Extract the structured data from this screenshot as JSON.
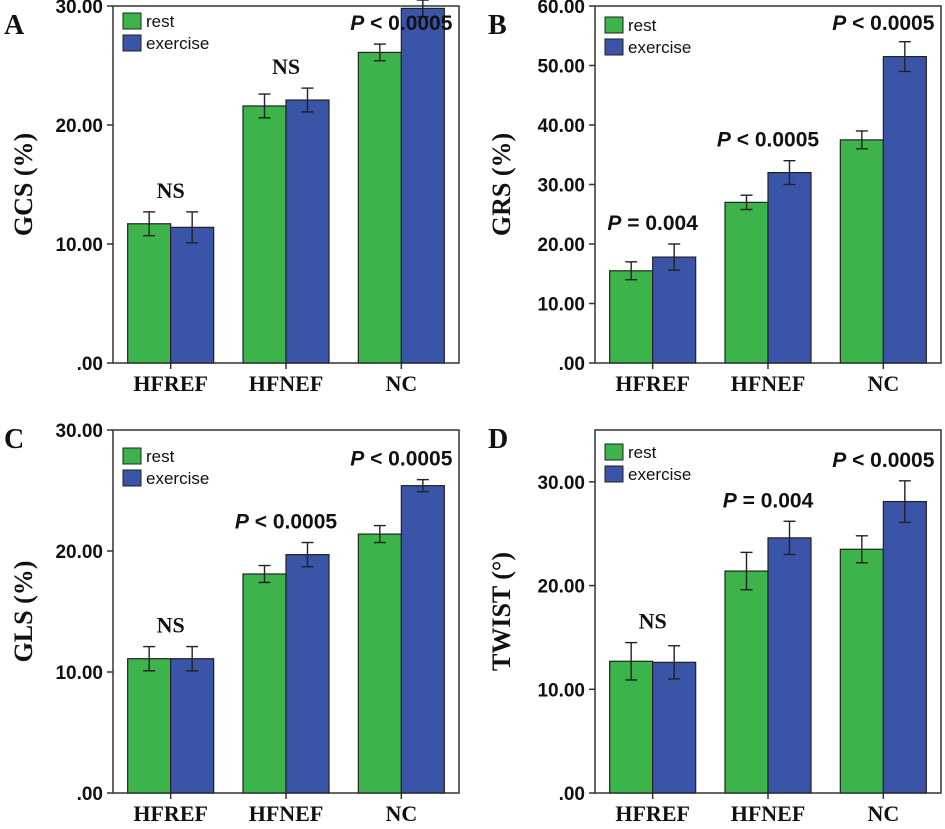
{
  "colors": {
    "rest": "#3cb44b",
    "exercise": "#3a54a8"
  },
  "chart_data": [
    {
      "type": "bar",
      "panel": "A",
      "ylabel": "GCS (%)",
      "categories": [
        "HFREF",
        "HFNEF",
        "NC"
      ],
      "ylim": [
        0,
        30
      ],
      "yticks": [
        ".00",
        "10.00",
        "20.00",
        "30.00"
      ],
      "ytick_values": [
        0,
        10,
        20,
        30
      ],
      "legend": [
        "rest",
        "exercise"
      ],
      "series": [
        {
          "name": "rest",
          "values": [
            11.7,
            21.6,
            26.1
          ],
          "error": [
            1.0,
            1.0,
            0.7
          ]
        },
        {
          "name": "exercise",
          "values": [
            11.4,
            22.1,
            29.8
          ],
          "error": [
            1.3,
            1.0,
            0.7
          ]
        }
      ],
      "annotations": [
        {
          "type": "ns",
          "text": "NS"
        },
        {
          "type": "ns",
          "text": "NS"
        },
        {
          "type": "p",
          "p": "P",
          "rest": "< 0.0005"
        }
      ]
    },
    {
      "type": "bar",
      "panel": "B",
      "ylabel": "GRS (%)",
      "categories": [
        "HFREF",
        "HFNEF",
        "NC"
      ],
      "ylim": [
        0,
        60
      ],
      "yticks": [
        ".00",
        "10.00",
        "20.00",
        "30.00",
        "40.00",
        "50.00",
        "60.00"
      ],
      "ytick_values": [
        0,
        10,
        20,
        30,
        40,
        50,
        60
      ],
      "legend": [
        "rest",
        "exercise"
      ],
      "series": [
        {
          "name": "rest",
          "values": [
            15.5,
            27.0,
            37.5
          ],
          "error": [
            1.5,
            1.2,
            1.5
          ]
        },
        {
          "name": "exercise",
          "values": [
            17.8,
            32.0,
            51.5
          ],
          "error": [
            2.2,
            2.0,
            2.5
          ]
        }
      ],
      "annotations": [
        {
          "type": "p",
          "p": "P",
          "rest": "= 0.004"
        },
        {
          "type": "p",
          "p": "P",
          "rest": "< 0.0005"
        },
        {
          "type": "p",
          "p": "P",
          "rest": "< 0.0005"
        }
      ]
    },
    {
      "type": "bar",
      "panel": "C",
      "ylabel": "GLS (%)",
      "categories": [
        "HFREF",
        "HFNEF",
        "NC"
      ],
      "ylim": [
        0,
        30
      ],
      "yticks": [
        ".00",
        "10.00",
        "20.00",
        "30.00"
      ],
      "ytick_values": [
        0,
        10,
        20,
        30
      ],
      "legend": [
        "rest",
        "exercise"
      ],
      "series": [
        {
          "name": "rest",
          "values": [
            11.1,
            18.1,
            21.4
          ],
          "error": [
            1.0,
            0.7,
            0.7
          ]
        },
        {
          "name": "exercise",
          "values": [
            11.1,
            19.7,
            25.4
          ],
          "error": [
            1.0,
            1.0,
            0.5
          ]
        }
      ],
      "annotations": [
        {
          "type": "ns",
          "text": "NS"
        },
        {
          "type": "p",
          "p": "P",
          "rest": "< 0.0005"
        },
        {
          "type": "p",
          "p": "P",
          "rest": "< 0.0005"
        }
      ]
    },
    {
      "type": "bar",
      "panel": "D",
      "ylabel": "TWIST (°)",
      "categories": [
        "HFREF",
        "HFNEF",
        "NC"
      ],
      "ylim": [
        0,
        35
      ],
      "yticks": [
        ".00",
        "10.00",
        "20.00",
        "30.00"
      ],
      "ytick_values": [
        0,
        10,
        20,
        30
      ],
      "legend": [
        "rest",
        "exercise"
      ],
      "series": [
        {
          "name": "rest",
          "values": [
            12.7,
            21.4,
            23.5
          ],
          "error": [
            1.8,
            1.8,
            1.3
          ]
        },
        {
          "name": "exercise",
          "values": [
            12.6,
            24.6,
            28.1
          ],
          "error": [
            1.6,
            1.6,
            2.0
          ]
        }
      ],
      "annotations": [
        {
          "type": "ns",
          "text": "NS"
        },
        {
          "type": "p",
          "p": "P",
          "rest": "= 0.004"
        },
        {
          "type": "p",
          "p": "P",
          "rest": "< 0.0005"
        }
      ]
    }
  ]
}
